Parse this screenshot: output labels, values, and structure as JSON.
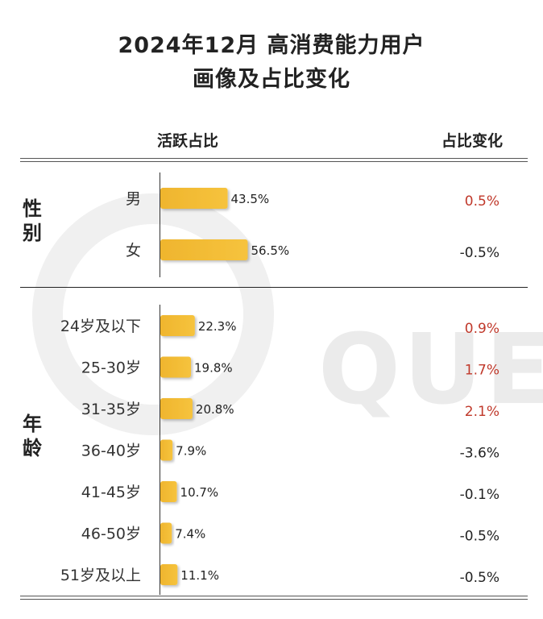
{
  "title_line1": "2024年12月 高消费能力用户",
  "title_line2": "画像及占比变化",
  "header_left": "活跃占比",
  "header_right": "占比变化",
  "group_gender": "性别",
  "group_age": "年龄",
  "watermark": "QUE",
  "colors": {
    "bar": "#F6C33D",
    "positive": "#C0392B",
    "neutral": "#222222"
  },
  "chart_data": {
    "type": "bar",
    "orientation": "horizontal",
    "groups": [
      {
        "name": "性别",
        "categories": [
          "男",
          "女"
        ],
        "values": [
          43.5,
          56.5
        ],
        "labels": [
          "43.5%",
          "56.5%"
        ],
        "changes": [
          "0.5%",
          "-0.5%"
        ],
        "change_positive": [
          true,
          false
        ]
      },
      {
        "name": "年龄",
        "categories": [
          "24岁及以下",
          "25-30岁",
          "31-35岁",
          "36-40岁",
          "41-45岁",
          "46-50岁",
          "51岁及以上"
        ],
        "values": [
          22.3,
          19.8,
          20.8,
          7.9,
          10.7,
          7.4,
          11.1
        ],
        "labels": [
          "22.3%",
          "19.8%",
          "20.8%",
          "7.9%",
          "10.7%",
          "7.4%",
          "11.1%"
        ],
        "changes": [
          "0.9%",
          "1.7%",
          "2.1%",
          "-3.6%",
          "-0.1%",
          "-0.5%",
          "-0.5%"
        ],
        "change_positive": [
          true,
          true,
          true,
          false,
          false,
          false,
          false
        ]
      }
    ],
    "value_unit": "%",
    "grid": false,
    "legend": "none"
  }
}
